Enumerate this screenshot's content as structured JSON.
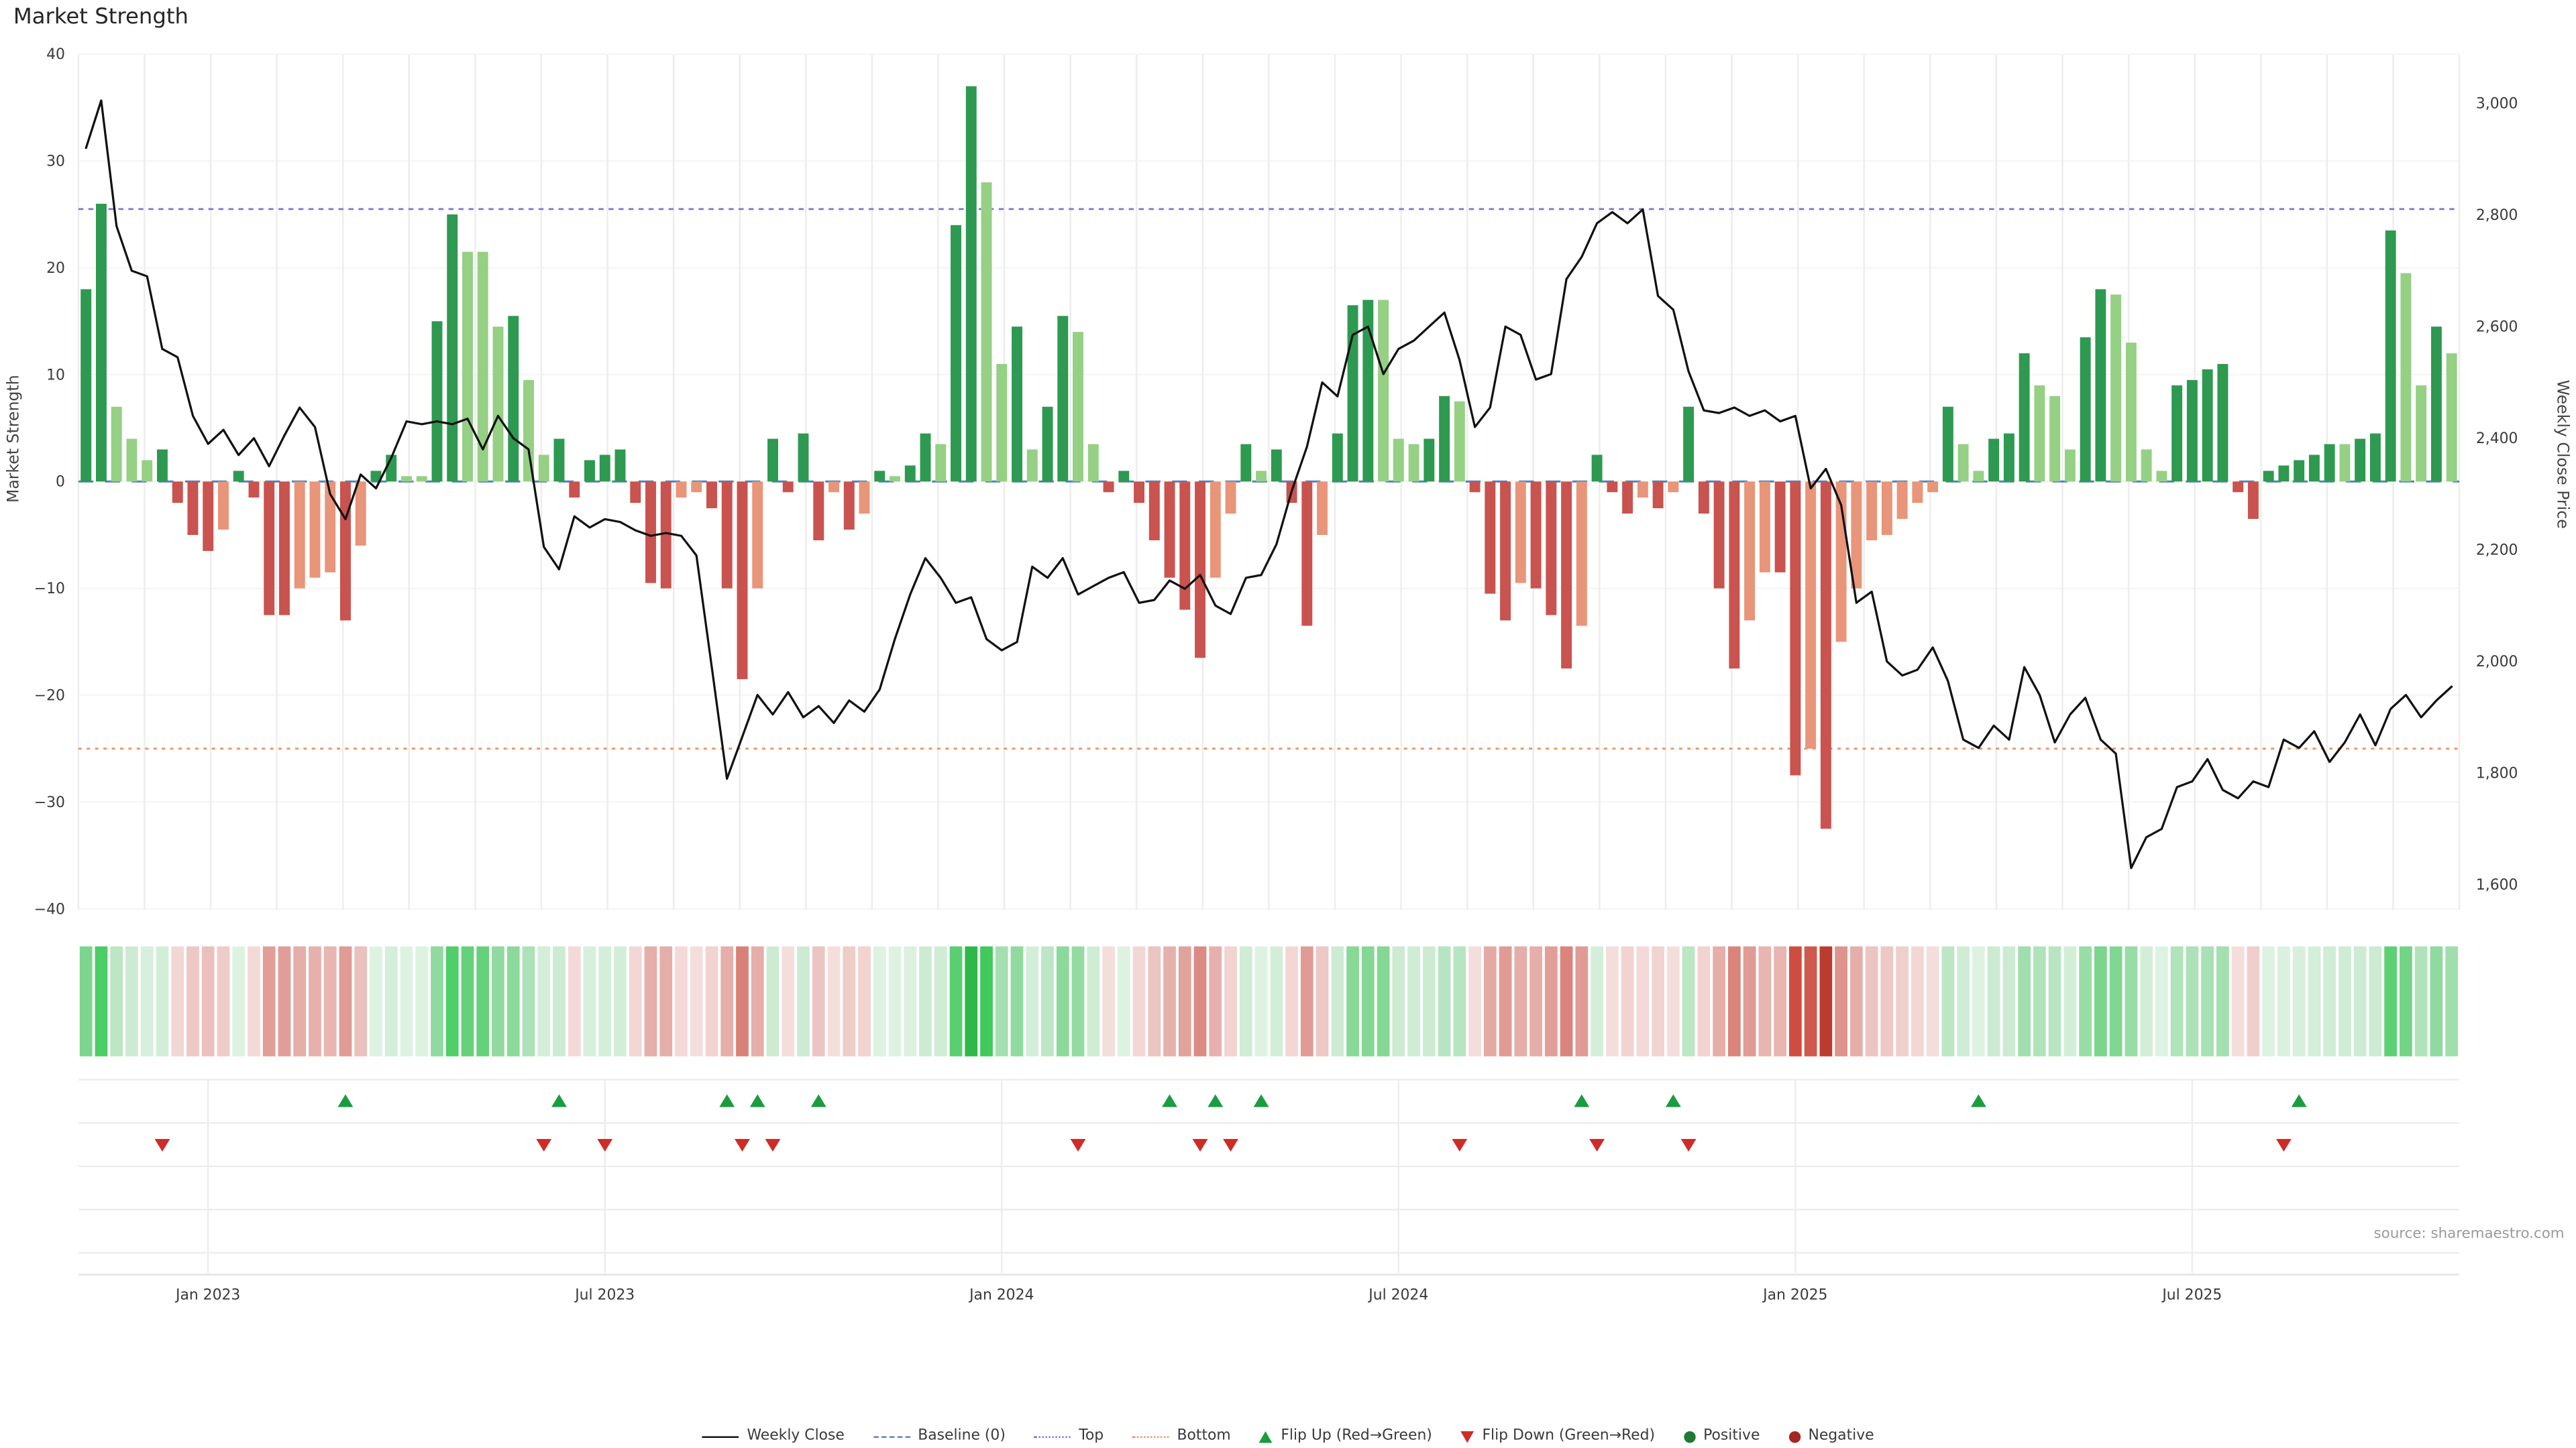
{
  "page": {
    "title": "Market Strength",
    "source": "source: sharemaestro.com"
  },
  "colors": {
    "bar_positive_dark": "#2e9950",
    "bar_positive_light": "#95d084",
    "bar_negative_dark": "#c9534f",
    "bar_negative_light": "#e89579",
    "price_line": "#111111",
    "baseline_line": "#4f81bd",
    "top_line": "#8273d4",
    "bottom_line": "#ec9160",
    "flip_up": "#1a9c3f",
    "flip_down": "#cf2b27",
    "positive_dot": "#1f7a34",
    "negative_dot": "#a32723"
  },
  "legend": {
    "items": [
      {
        "label": "Weekly Close",
        "marker": "black-line"
      },
      {
        "label": "Baseline (0)",
        "marker": "blue-dashed-line"
      },
      {
        "label": "Top",
        "marker": "purple-dotted-line"
      },
      {
        "label": "Bottom",
        "marker": "orange-dotted-line"
      },
      {
        "label": "Flip Up (Red→Green)",
        "marker": "green-triangle-up"
      },
      {
        "label": "Flip Down (Green→Red)",
        "marker": "red-triangle-down"
      },
      {
        "label": "Positive",
        "marker": "green-dot"
      },
      {
        "label": "Negative",
        "marker": "dark-red-dot"
      }
    ]
  },
  "chart_data": {
    "type": "combo",
    "title": "Market Strength",
    "grid": true,
    "legend_position": "bottom",
    "x": {
      "freq": "weekly",
      "count": 156,
      "tick_indices": [
        9,
        35,
        61,
        87,
        113,
        139
      ],
      "tick_labels": [
        "Jan 2023",
        "Jul 2023",
        "Jan 2024",
        "Jul 2024",
        "Jan 2025",
        "Jul 2025"
      ]
    },
    "left_axis": {
      "label": "Market Strength",
      "min": -40,
      "max": 40,
      "ticks": [
        40,
        30,
        20,
        10,
        0,
        -10,
        -20,
        -30,
        -40
      ],
      "tick_labels": [
        "40",
        "30",
        "20",
        "10",
        "0",
        "−10",
        "−20",
        "−30",
        "−40"
      ]
    },
    "right_axis": {
      "label": "Weekly Close Price",
      "min": 1600,
      "max": 3000,
      "ticks": [
        3000,
        2800,
        2600,
        2400,
        2200,
        2000,
        1800,
        1600
      ],
      "tick_labels": [
        "3,000",
        "2,800",
        "2,600",
        "2,400",
        "2,200",
        "2,000",
        "1,800",
        "1,600"
      ]
    },
    "reference_lines": {
      "baseline": 0,
      "top": 25.5,
      "bottom": -25
    },
    "series": [
      {
        "name": "Market Strength",
        "type": "bar",
        "axis": "left",
        "values": [
          18,
          26,
          7,
          4,
          2,
          3,
          -2,
          -5,
          -6.5,
          -4.5,
          1,
          -1.5,
          -12.5,
          -12.5,
          -10,
          -9,
          -8.5,
          -13,
          -6,
          1,
          2.5,
          0.5,
          0.5,
          15,
          25,
          21.5,
          21.5,
          14.5,
          15.5,
          9.5,
          2.5,
          4,
          -1.5,
          2,
          2.5,
          3,
          -2,
          -9.5,
          -10,
          -1.5,
          -1,
          -2.5,
          -10,
          -18.5,
          -10,
          4,
          -1,
          4.5,
          -5.5,
          -1,
          -4.5,
          -3,
          1,
          0.5,
          1.5,
          4.5,
          3.5,
          24,
          37,
          28,
          11,
          14.5,
          3,
          7,
          15.5,
          14,
          3.5,
          -1,
          1,
          -2,
          -5.5,
          -9,
          -12,
          -16.5,
          -9,
          -3,
          3.5,
          1,
          3,
          -2,
          -13.5,
          -5,
          4.5,
          16.5,
          17,
          17,
          4,
          3.5,
          4,
          8,
          7.5,
          -1,
          -10.5,
          -13,
          -9.5,
          -10,
          -12.5,
          -17.5,
          -13.5,
          2.5,
          -1,
          -3,
          -1.5,
          -2.5,
          -1,
          7,
          -3,
          -10,
          -17.5,
          -13,
          -8.5,
          -8.5,
          -27.5,
          -25,
          -32.5,
          -15,
          -10,
          -5.5,
          -5,
          -3.5,
          -2,
          -1,
          7,
          3.5,
          1,
          4,
          4.5,
          12,
          9,
          8,
          3,
          13.5,
          18,
          17.5,
          13,
          3,
          1,
          9,
          9.5,
          10.5,
          11,
          -1,
          -3.5,
          1,
          1.5,
          2,
          2.5,
          3.5,
          3.5,
          4,
          4.5,
          23.5,
          19.5,
          9,
          14.5,
          12
        ]
      },
      {
        "name": "Weekly Close",
        "type": "line",
        "axis": "right",
        "values": [
          2920,
          3005,
          2780,
          2700,
          2690,
          2560,
          2545,
          2440,
          2390,
          2415,
          2370,
          2400,
          2350,
          2405,
          2455,
          2420,
          2300,
          2255,
          2335,
          2310,
          2365,
          2430,
          2425,
          2430,
          2425,
          2435,
          2380,
          2440,
          2400,
          2380,
          2205,
          2165,
          2260,
          2240,
          2255,
          2250,
          2235,
          2225,
          2230,
          2225,
          2190,
          1990,
          1790,
          1865,
          1940,
          1905,
          1945,
          1900,
          1920,
          1890,
          1930,
          1910,
          1950,
          2040,
          2120,
          2185,
          2150,
          2105,
          2115,
          2040,
          2020,
          2035,
          2170,
          2150,
          2185,
          2120,
          2135,
          2150,
          2160,
          2105,
          2110,
          2145,
          2130,
          2155,
          2100,
          2085,
          2150,
          2155,
          2210,
          2305,
          2385,
          2500,
          2475,
          2585,
          2600,
          2515,
          2560,
          2575,
          2600,
          2625,
          2540,
          2420,
          2455,
          2600,
          2585,
          2505,
          2515,
          2685,
          2725,
          2785,
          2805,
          2785,
          2810,
          2655,
          2630,
          2520,
          2450,
          2445,
          2455,
          2440,
          2450,
          2430,
          2440,
          2310,
          2345,
          2280,
          2105,
          2125,
          2000,
          1975,
          1985,
          2025,
          1965,
          1860,
          1845,
          1885,
          1860,
          1990,
          1940,
          1855,
          1905,
          1935,
          1860,
          1835,
          1630,
          1685,
          1700,
          1775,
          1785,
          1825,
          1770,
          1755,
          1785,
          1775,
          1860,
          1845,
          1875,
          1820,
          1855,
          1905,
          1850,
          1915,
          1940,
          1900,
          1930,
          1955
        ]
      }
    ],
    "flip_up_weeks": [
      18,
      32,
      43,
      45,
      49,
      72,
      75,
      78,
      99,
      105,
      125,
      146
    ],
    "flip_down_weeks": [
      6,
      31,
      35,
      44,
      46,
      66,
      74,
      76,
      91,
      100,
      106,
      145
    ],
    "heatmap_band": {
      "present": true,
      "maps": "weekly Market Strength values to red/green cell intensity"
    }
  }
}
